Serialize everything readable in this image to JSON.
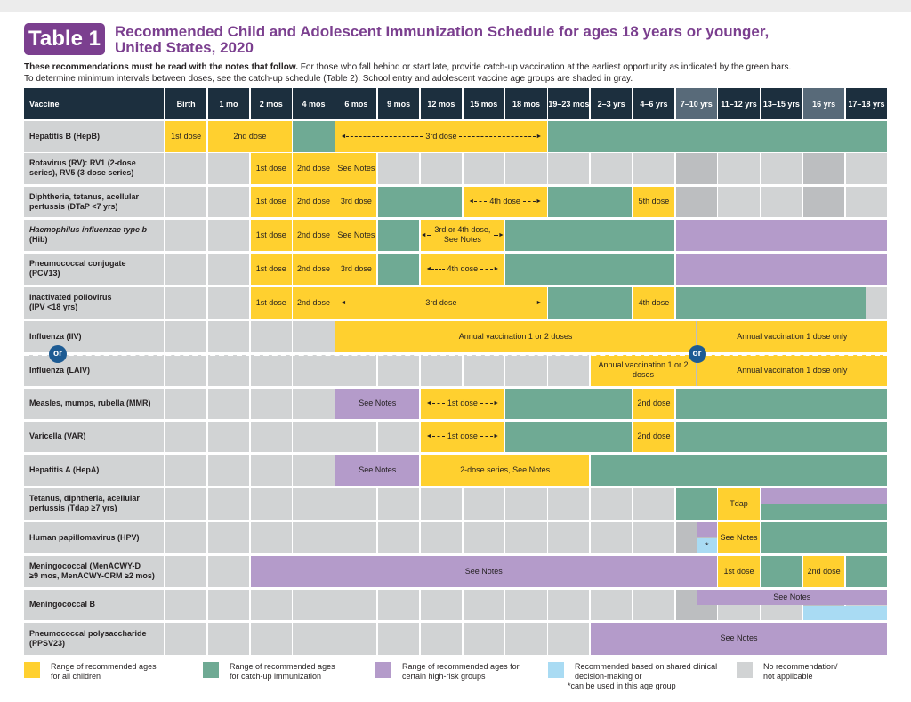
{
  "header": {
    "badge": "Table 1",
    "title_line1": "Recommended Child and Adolescent Immunization Schedule for ages 18 years or younger,",
    "title_line2": "United States, 2020",
    "intro_bold": "These recommendations must be read with the notes that follow.",
    "intro_rest": " For those who fall behind or start late, provide catch-up vaccination at the earliest opportunity as indicated by the green bars.",
    "intro_line2": "To determine minimum intervals between doses, see the catch-up schedule (Table 2). School entry and adolescent vaccine age groups are shaded in gray."
  },
  "colors": {
    "yellow": "#ffd02f",
    "green": "#6faa94",
    "purple": "#b49bca",
    "blue": "#a9dbf3",
    "gray": "#d1d3d4",
    "header": "#1c2f3e",
    "title": "#7b3f8f"
  },
  "columns": [
    "Vaccine",
    "Birth",
    "1 mo",
    "2 mos",
    "4 mos",
    "6 mos",
    "9 mos",
    "12 mos",
    "15 mos",
    "18 mos",
    "19–23 mos",
    "2–3 yrs",
    "4–6 yrs",
    "7–10 yrs",
    "11–12 yrs",
    "13–15 yrs",
    "16 yrs",
    "17–18 yrs"
  ],
  "rows": [
    {
      "name_line1": "Hepatitis B (HepB)",
      "name_line2": "",
      "segments": [
        {
          "start": 0,
          "end": 1,
          "color": "y",
          "label": "1st dose"
        },
        {
          "start": 1,
          "end": 3,
          "color": "y",
          "label": "2nd dose"
        },
        {
          "start": 3,
          "end": 4,
          "color": "gr",
          "label": ""
        },
        {
          "start": 4,
          "end": 9,
          "color": "y",
          "label": "3rd dose",
          "arrows": true
        },
        {
          "start": 9,
          "end": 17,
          "color": "gr",
          "label": ""
        }
      ]
    },
    {
      "name_line1": "Rotavirus (RV): RV1 (2-dose",
      "name_line2": "series), RV5 (3-dose series)",
      "segments": [
        {
          "start": 2,
          "end": 3,
          "color": "y",
          "label": "1st dose"
        },
        {
          "start": 3,
          "end": 4,
          "color": "y",
          "label": "2nd dose"
        },
        {
          "start": 4,
          "end": 5,
          "color": "y",
          "label": "See Notes"
        }
      ]
    },
    {
      "name_line1": "Diphtheria, tetanus, acellular",
      "name_line2": "pertussis (DTaP <7 yrs)",
      "segments": [
        {
          "start": 2,
          "end": 3,
          "color": "y",
          "label": "1st dose"
        },
        {
          "start": 3,
          "end": 4,
          "color": "y",
          "label": "2nd dose"
        },
        {
          "start": 4,
          "end": 5,
          "color": "y",
          "label": "3rd dose"
        },
        {
          "start": 5,
          "end": 7,
          "color": "gr",
          "label": ""
        },
        {
          "start": 7,
          "end": 9,
          "color": "y",
          "label": "4th dose",
          "arrows": true
        },
        {
          "start": 9,
          "end": 11,
          "color": "gr",
          "label": ""
        },
        {
          "start": 11,
          "end": 12,
          "color": "y",
          "label": "5th dose"
        }
      ]
    },
    {
      "name_line1": "Haemophilus influenzae type b",
      "name_line2": "(Hib)",
      "italic": true,
      "segments": [
        {
          "start": 2,
          "end": 3,
          "color": "y",
          "label": "1st dose"
        },
        {
          "start": 3,
          "end": 4,
          "color": "y",
          "label": "2nd dose"
        },
        {
          "start": 4,
          "end": 5,
          "color": "y",
          "label": "See Notes"
        },
        {
          "start": 5,
          "end": 6,
          "color": "gr",
          "label": ""
        },
        {
          "start": 6,
          "end": 8,
          "color": "y",
          "label": "3rd or 4th dose, See Notes",
          "arrows": true
        },
        {
          "start": 8,
          "end": 12,
          "color": "gr",
          "label": ""
        },
        {
          "start": 12,
          "end": 17,
          "color": "p",
          "label": ""
        }
      ]
    },
    {
      "name_line1": "Pneumococcal conjugate",
      "name_line2": "(PCV13)",
      "segments": [
        {
          "start": 2,
          "end": 3,
          "color": "y",
          "label": "1st dose"
        },
        {
          "start": 3,
          "end": 4,
          "color": "y",
          "label": "2nd dose"
        },
        {
          "start": 4,
          "end": 5,
          "color": "y",
          "label": "3rd dose"
        },
        {
          "start": 5,
          "end": 6,
          "color": "gr",
          "label": ""
        },
        {
          "start": 6,
          "end": 8,
          "color": "y",
          "label": "4th dose",
          "arrows": true
        },
        {
          "start": 8,
          "end": 12,
          "color": "gr",
          "label": ""
        },
        {
          "start": 12,
          "end": 17,
          "color": "p",
          "label": ""
        }
      ]
    },
    {
      "name_line1": "Inactivated poliovirus",
      "name_line2": "(IPV <18 yrs)",
      "segments": [
        {
          "start": 2,
          "end": 3,
          "color": "y",
          "label": "1st dose"
        },
        {
          "start": 3,
          "end": 4,
          "color": "y",
          "label": "2nd dose"
        },
        {
          "start": 4,
          "end": 9,
          "color": "y",
          "label": "3rd dose",
          "arrows": true
        },
        {
          "start": 9,
          "end": 11,
          "color": "gr",
          "label": ""
        },
        {
          "start": 11,
          "end": 12,
          "color": "y",
          "label": "4th dose"
        },
        {
          "start": 12,
          "end": 16.5,
          "color": "gr",
          "label": ""
        }
      ]
    },
    {
      "name_line1": "Influenza (IIV)",
      "name_line2": "",
      "half": "top",
      "segments": [
        {
          "start": 4,
          "end": 12.5,
          "color": "y",
          "label": "Annual vaccination 1 or 2 doses"
        },
        {
          "start": 12.5,
          "end": 17,
          "color": "y",
          "label": "Annual vaccination 1 dose only"
        }
      ]
    },
    {
      "name_line1": "Influenza (LAIV)",
      "name_line2": "",
      "half": "bottom",
      "segments": [
        {
          "start": 10,
          "end": 12.5,
          "color": "y",
          "label": "Annual vaccination 1 or 2 doses"
        },
        {
          "start": 12.5,
          "end": 17,
          "color": "y",
          "label": "Annual vaccination 1 dose only"
        }
      ]
    },
    {
      "name_line1": "Measles, mumps, rubella (MMR)",
      "name_line2": "",
      "segments": [
        {
          "start": 4,
          "end": 6,
          "color": "p",
          "label": "See Notes"
        },
        {
          "start": 6,
          "end": 8,
          "color": "y",
          "label": "1st dose",
          "arrows": true
        },
        {
          "start": 8,
          "end": 11,
          "color": "gr",
          "label": ""
        },
        {
          "start": 11,
          "end": 12,
          "color": "y",
          "label": "2nd dose"
        },
        {
          "start": 12,
          "end": 17,
          "color": "gr",
          "label": ""
        }
      ]
    },
    {
      "name_line1": "Varicella (VAR)",
      "name_line2": "",
      "segments": [
        {
          "start": 6,
          "end": 8,
          "color": "y",
          "label": "1st dose",
          "arrows": true
        },
        {
          "start": 8,
          "end": 11,
          "color": "gr",
          "label": ""
        },
        {
          "start": 11,
          "end": 12,
          "color": "y",
          "label": "2nd dose"
        },
        {
          "start": 12,
          "end": 17,
          "color": "gr",
          "label": ""
        }
      ]
    },
    {
      "name_line1": "Hepatitis A (HepA)",
      "name_line2": "",
      "segments": [
        {
          "start": 4,
          "end": 6,
          "color": "p",
          "label": "See Notes"
        },
        {
          "start": 6,
          "end": 10,
          "color": "y",
          "label": "2-dose series, See Notes"
        },
        {
          "start": 10,
          "end": 17,
          "color": "gr",
          "label": ""
        }
      ]
    },
    {
      "name_line1": "Tetanus, diphtheria, acellular",
      "name_line2": "pertussis (Tdap ≥7 yrs)",
      "segments": [
        {
          "start": 12,
          "end": 13,
          "color": "gr",
          "label": ""
        },
        {
          "start": 13,
          "end": 14,
          "color": "y",
          "label": "Tdap"
        },
        {
          "start": 14,
          "end": 17,
          "color": "p",
          "label": "",
          "part": "top"
        },
        {
          "start": 14,
          "end": 17,
          "color": "gr",
          "label": "",
          "part": "bottom"
        }
      ]
    },
    {
      "name_line1": "Human papillomavirus (HPV)",
      "name_line2": "",
      "segments": [
        {
          "start": 12.5,
          "end": 13,
          "color": "p",
          "label": "",
          "part": "top"
        },
        {
          "start": 12.5,
          "end": 13,
          "color": "b",
          "label": "*",
          "part": "bottom"
        },
        {
          "start": 13,
          "end": 14,
          "color": "y",
          "label": "See Notes"
        },
        {
          "start": 14,
          "end": 17,
          "color": "gr",
          "label": ""
        }
      ]
    },
    {
      "name_line1": "Meningococcal (MenACWY-D",
      "name_line2": "≥9 mos, MenACWY-CRM ≥2 mos)",
      "segments": [
        {
          "start": 2,
          "end": 13,
          "color": "p",
          "label": "See Notes"
        },
        {
          "start": 13,
          "end": 14,
          "color": "y",
          "label": "1st dose"
        },
        {
          "start": 14,
          "end": 15,
          "color": "gr",
          "label": ""
        },
        {
          "start": 15,
          "end": 16,
          "color": "y",
          "label": "2nd dose"
        },
        {
          "start": 16,
          "end": 17,
          "color": "gr",
          "label": ""
        }
      ]
    },
    {
      "name_line1": "Meningococcal B",
      "name_line2": "",
      "segments": [
        {
          "start": 12.5,
          "end": 17,
          "color": "p",
          "label": "See Notes",
          "part": "top"
        },
        {
          "start": 15,
          "end": 17,
          "color": "b",
          "label": "",
          "part": "bottom"
        }
      ]
    },
    {
      "name_line1": "Pneumococcal polysaccharide",
      "name_line2": "(PPSV23)",
      "segments": [
        {
          "start": 10,
          "end": 17,
          "color": "p",
          "label": "See Notes"
        }
      ]
    }
  ],
  "or_label": "or",
  "legend": [
    {
      "color": "#ffd02f",
      "line1": "Range of recommended ages",
      "line2": "for all children",
      "line3": ""
    },
    {
      "color": "#6faa94",
      "line1": "Range of recommended ages",
      "line2": "for catch-up immunization",
      "line3": ""
    },
    {
      "color": "#b49bca",
      "line1": "Range of recommended ages for",
      "line2": "certain high-risk groups",
      "line3": ""
    },
    {
      "color": "#a9dbf3",
      "line1": "Recommended based on shared clinical",
      "line2": "decision-making or",
      "line3": "*can be used in this age group"
    },
    {
      "color": "#d1d3d4",
      "line1": "No recommendation/",
      "line2": "not applicable",
      "line3": ""
    }
  ]
}
